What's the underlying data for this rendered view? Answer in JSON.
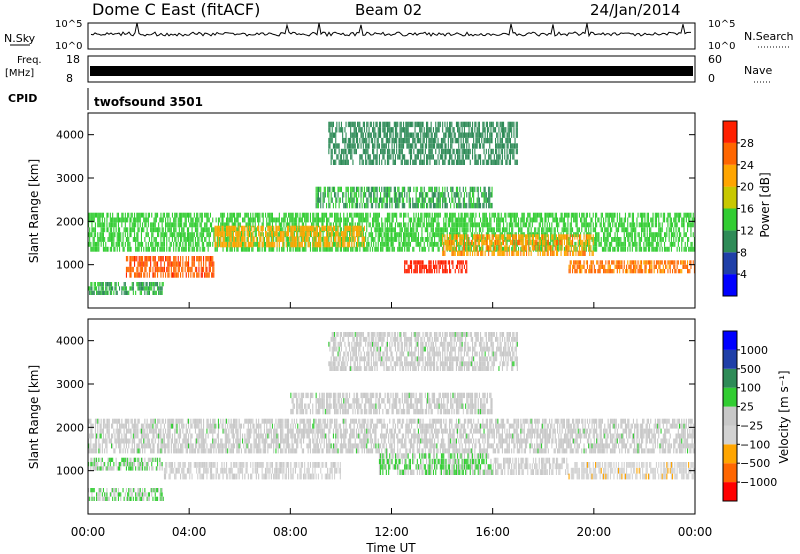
{
  "header": {
    "title": "Dome C East (fitACF)",
    "beam": "Beam 02",
    "date": "24/Jan/2014"
  },
  "params": {
    "nsky_label": "N.Sky",
    "nsky_ticks": [
      "10^5",
      "10^0"
    ],
    "nsearch_label": "N.Search",
    "nsearch_ticks": [
      "10^5",
      "10^0"
    ],
    "freq_label_line1": "Freq.",
    "freq_label_line2": "[MHz]",
    "freq_ticks": [
      "18",
      "8"
    ],
    "nave_label": "Nave",
    "nave_ticks": [
      "60",
      "0"
    ],
    "cpid_label": "CPID",
    "cpid_value": "twofsound 3501"
  },
  "axes": {
    "ylabel": "Slant Range [km]",
    "xlabel": "Time UT",
    "yticks": [
      "1000",
      "2000",
      "3000",
      "4000"
    ],
    "xticks": [
      "00:00",
      "04:00",
      "08:00",
      "12:00",
      "16:00",
      "20:00",
      "00:00"
    ]
  },
  "colors": {
    "power": [
      "#0000ff",
      "#1f3fa8",
      "#2e8b57",
      "#32cd32",
      "#c8c800",
      "#ffa500",
      "#ff6600",
      "#ff2000"
    ],
    "velocity": [
      "#ff0000",
      "#ff6600",
      "#ffa500",
      "#d2d2d2",
      "#c8c8c8",
      "#32cd32",
      "#2e8b57",
      "#1f3fa8",
      "#0000ff"
    ]
  },
  "chart_data": [
    {
      "type": "heatmap",
      "name": "power",
      "x_range_hours": [
        0,
        24
      ],
      "ylim": [
        0,
        4500
      ],
      "colorbar_label": "Power [dB]",
      "colorbar_ticks": [
        "4",
        "8",
        "12",
        "16",
        "20",
        "24",
        "28"
      ],
      "colorbar_range": [
        0,
        32
      ],
      "bands": [
        {
          "t0": 0.0,
          "t1": 24.0,
          "r0": 1300,
          "r1": 2200,
          "value": 14
        },
        {
          "t0": 1.5,
          "t1": 5.0,
          "r0": 700,
          "r1": 1200,
          "value": 27
        },
        {
          "t0": 5.0,
          "t1": 11.0,
          "r0": 1400,
          "r1": 1900,
          "value": 22
        },
        {
          "t0": 12.5,
          "t1": 15.0,
          "r0": 800,
          "r1": 1100,
          "value": 30
        },
        {
          "t0": 14.0,
          "t1": 20.0,
          "r0": 1200,
          "r1": 1700,
          "value": 23
        },
        {
          "t0": 19.0,
          "t1": 24.0,
          "r0": 800,
          "r1": 1100,
          "value": 25
        },
        {
          "t0": 9.0,
          "t1": 16.0,
          "r0": 2300,
          "r1": 2800,
          "value": 12
        },
        {
          "t0": 9.5,
          "t1": 17.0,
          "r0": 3300,
          "r1": 4300,
          "value": 10
        },
        {
          "t0": 0.0,
          "t1": 3.0,
          "r0": 300,
          "r1": 600,
          "value": 12
        }
      ]
    },
    {
      "type": "heatmap",
      "name": "velocity",
      "x_range_hours": [
        0,
        24
      ],
      "ylim": [
        0,
        4500
      ],
      "colorbar_label": "Velocity [m s⁻¹]",
      "colorbar_ticks": [
        "1000",
        "500",
        "100",
        "25",
        "−25",
        "−100",
        "−500",
        "−1000"
      ],
      "colorbar_range": [
        -1250,
        1250
      ],
      "bands": [
        {
          "t0": 0.0,
          "t1": 24.0,
          "r0": 1400,
          "r1": 2200,
          "value": 0
        },
        {
          "t0": 0.0,
          "t1": 3.0,
          "r0": 1000,
          "r1": 1300,
          "value": 120
        },
        {
          "t0": 3.0,
          "t1": 10.0,
          "r0": 800,
          "r1": 1200,
          "value": -150
        },
        {
          "t0": 11.5,
          "t1": 16.0,
          "r0": 900,
          "r1": 1400,
          "value": 150
        },
        {
          "t0": 16.0,
          "t1": 19.0,
          "r0": 900,
          "r1": 1300,
          "value": -120
        },
        {
          "t0": 19.0,
          "t1": 24.0,
          "r0": 800,
          "r1": 1200,
          "value": -300
        },
        {
          "t0": 8.0,
          "t1": 16.0,
          "r0": 2300,
          "r1": 2800,
          "value": 0
        },
        {
          "t0": 9.5,
          "t1": 17.0,
          "r0": 3300,
          "r1": 4200,
          "value": 0
        },
        {
          "t0": 0.0,
          "t1": 3.0,
          "r0": 300,
          "r1": 600,
          "value": 150
        }
      ]
    }
  ]
}
